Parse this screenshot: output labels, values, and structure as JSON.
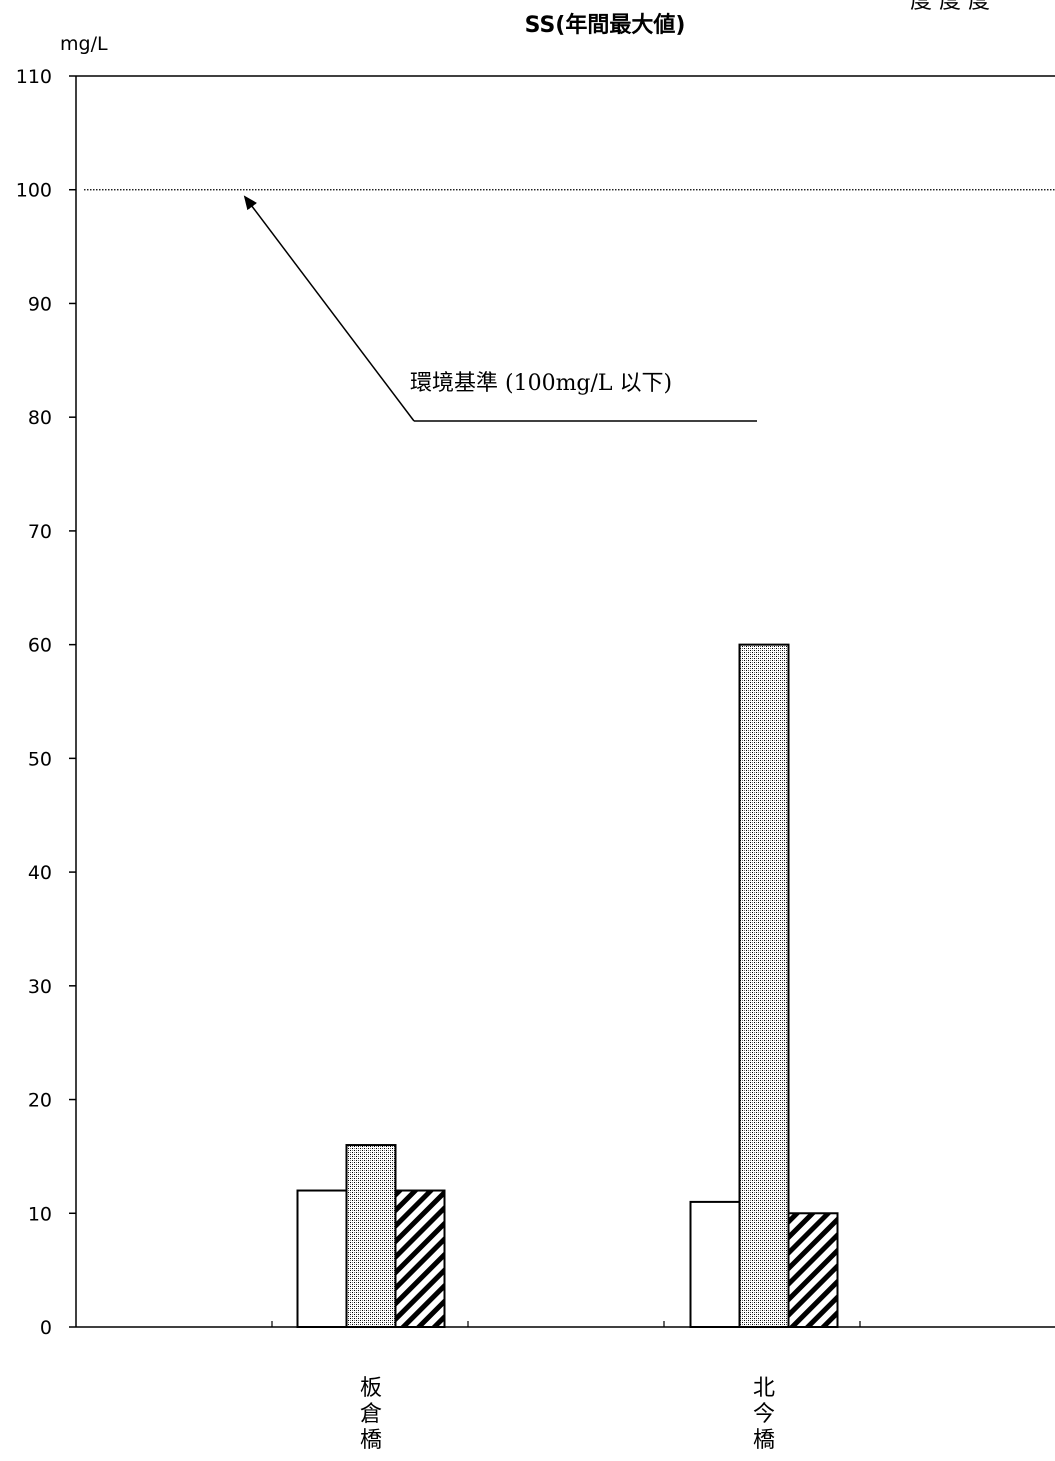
{
  "page": {
    "corner_text": "度 度 度"
  },
  "chart_data": {
    "type": "bar",
    "title": "SS(年間最大値)",
    "ylabel": "mg/L",
    "xlabel": "",
    "ylim": [
      0,
      110
    ],
    "yticks": [
      0,
      10,
      20,
      30,
      40,
      50,
      60,
      70,
      80,
      90,
      100,
      110
    ],
    "categories": [
      "板倉橋",
      "北今橋"
    ],
    "series": [
      {
        "values": [
          12,
          11
        ],
        "pattern": "white",
        "color": "#ffffff"
      },
      {
        "values": [
          16,
          60
        ],
        "pattern": "dots",
        "color": "#b0b0b0"
      },
      {
        "values": [
          12,
          10
        ],
        "pattern": "hatch",
        "color": "#000000"
      }
    ],
    "reference_line": {
      "value": 100,
      "style": "dotted"
    },
    "annotation": {
      "text": "環境基準 (100mg/L 以下)",
      "points_to": 100
    },
    "grid": false,
    "legend": "none"
  }
}
